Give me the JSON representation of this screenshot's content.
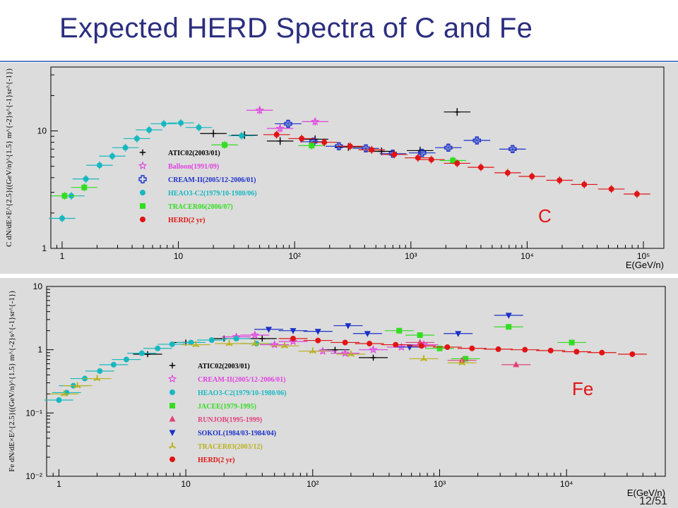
{
  "slide": {
    "title": "Expected HERD Spectra of C and Fe",
    "page_number": "12/51"
  },
  "chart_data": [
    {
      "type": "scatter",
      "title": "",
      "annotation": "C",
      "xlabel": "E(GeV/n)",
      "ylabel": "C dN/dE×E^{2.5}((GeV/n)^{1.5} m^{-2}s^{-1}sr^{-1})",
      "xscale": "log",
      "yscale": "log",
      "xlim": [
        0.8,
        150000
      ],
      "ylim": [
        1,
        35
      ],
      "x_ticks": [
        {
          "v": 1,
          "label": "1"
        },
        {
          "v": 10,
          "label": "10"
        },
        {
          "v": 100,
          "label": "10²"
        },
        {
          "v": 1000,
          "label": "10³"
        },
        {
          "v": 10000,
          "label": "10⁴"
        },
        {
          "v": 100000,
          "label": "10⁵"
        }
      ],
      "y_ticks": [
        {
          "v": 1,
          "label": "1"
        },
        {
          "v": 10,
          "label": "10"
        }
      ],
      "legend_position": "left",
      "series": [
        {
          "name": "ATIC02(2003/01)",
          "color": "#000000",
          "marker": "plus",
          "points": [
            {
              "x": 20,
              "y": 9.5
            },
            {
              "x": 37,
              "y": 9.2
            },
            {
              "x": 75,
              "y": 8.2
            },
            {
              "x": 150,
              "y": 8.5
            },
            {
              "x": 290,
              "y": 7.3
            },
            {
              "x": 560,
              "y": 6.7
            },
            {
              "x": 1200,
              "y": 6.8
            },
            {
              "x": 2500,
              "y": 14.5
            }
          ]
        },
        {
          "name": "Balloon(1991/09)",
          "color": "#e040e0",
          "marker": "star",
          "points": [
            {
              "x": 50,
              "y": 15
            },
            {
              "x": 75,
              "y": 10.5
            },
            {
              "x": 150,
              "y": 12
            }
          ]
        },
        {
          "name": "CREAM-II(2005/12-2006/01)",
          "color": "#1a30c8",
          "marker": "open-cross",
          "points": [
            {
              "x": 88,
              "y": 11.5
            },
            {
              "x": 145,
              "y": 8.1
            },
            {
              "x": 240,
              "y": 7.4
            },
            {
              "x": 410,
              "y": 7.1
            },
            {
              "x": 700,
              "y": 6.4
            },
            {
              "x": 1250,
              "y": 6.5
            },
            {
              "x": 2100,
              "y": 7.2
            },
            {
              "x": 3700,
              "y": 8.3
            },
            {
              "x": 7500,
              "y": 7
            }
          ]
        },
        {
          "name": "HEAO3-C2(1979/10-1980/06)",
          "color": "#17b8c0",
          "marker": "circle",
          "points": [
            {
              "x": 1,
              "y": 1.8
            },
            {
              "x": 1.2,
              "y": 2.8
            },
            {
              "x": 1.6,
              "y": 3.9
            },
            {
              "x": 2.1,
              "y": 5.1
            },
            {
              "x": 2.7,
              "y": 6.1
            },
            {
              "x": 3.5,
              "y": 7.2
            },
            {
              "x": 4.4,
              "y": 8.6
            },
            {
              "x": 5.6,
              "y": 10.2
            },
            {
              "x": 7.5,
              "y": 11.5
            },
            {
              "x": 10.5,
              "y": 11.7
            },
            {
              "x": 15,
              "y": 10.7
            },
            {
              "x": 35,
              "y": 9.1
            }
          ]
        },
        {
          "name": "TRACER06(2006/07)",
          "color": "#33dd22",
          "marker": "square",
          "points": [
            {
              "x": 1.05,
              "y": 2.8
            },
            {
              "x": 1.55,
              "y": 3.3
            },
            {
              "x": 25,
              "y": 7.6
            },
            {
              "x": 140,
              "y": 7.5
            },
            {
              "x": 2300,
              "y": 5.6
            }
          ]
        },
        {
          "name": "HERD(2 yr)",
          "color": "#e01414",
          "marker": "circle",
          "points": [
            {
              "x": 70,
              "y": 9.3
            },
            {
              "x": 115,
              "y": 8.6
            },
            {
              "x": 180,
              "y": 8.0
            },
            {
              "x": 300,
              "y": 7.4
            },
            {
              "x": 460,
              "y": 6.9
            },
            {
              "x": 720,
              "y": 6.3
            },
            {
              "x": 1150,
              "y": 5.9
            },
            {
              "x": 1500,
              "y": 5.7
            },
            {
              "x": 2500,
              "y": 5.3
            },
            {
              "x": 4000,
              "y": 4.9
            },
            {
              "x": 6800,
              "y": 4.4
            },
            {
              "x": 11000,
              "y": 4.1
            },
            {
              "x": 19000,
              "y": 3.8
            },
            {
              "x": 31000,
              "y": 3.5
            },
            {
              "x": 53000,
              "y": 3.2
            },
            {
              "x": 88000,
              "y": 2.9
            }
          ]
        }
      ]
    },
    {
      "type": "scatter",
      "title": "",
      "annotation": "Fe",
      "xlabel": "E(GeV/n)",
      "ylabel": "Fe dN/dE×E^{2.5}((GeV/n)^{1.5} m^{-2}s^{-1}sr^{-1})",
      "xscale": "log",
      "yscale": "log",
      "xlim": [
        0.8,
        60000
      ],
      "ylim": [
        0.01,
        10
      ],
      "x_ticks": [
        {
          "v": 1,
          "label": "1"
        },
        {
          "v": 10,
          "label": "10"
        },
        {
          "v": 100,
          "label": "10²"
        },
        {
          "v": 1000,
          "label": "10³"
        },
        {
          "v": 10000,
          "label": "10⁴"
        }
      ],
      "y_ticks": [
        {
          "v": 0.01,
          "label": "10⁻²"
        },
        {
          "v": 0.1,
          "label": "10⁻¹"
        },
        {
          "v": 1,
          "label": "1"
        },
        {
          "v": 10,
          "label": "10"
        }
      ],
      "legend_position": "left",
      "series": [
        {
          "name": "ATIC02(2003/01)",
          "color": "#000000",
          "marker": "plus",
          "points": [
            {
              "x": 5,
              "y": 0.85
            },
            {
              "x": 10,
              "y": 1.3
            },
            {
              "x": 20,
              "y": 1.5
            },
            {
              "x": 40,
              "y": 1.5
            },
            {
              "x": 150,
              "y": 1.0
            },
            {
              "x": 300,
              "y": 0.75
            }
          ]
        },
        {
          "name": "CREAM-II(2005/12-2006/01)",
          "color": "#e040e0",
          "marker": "star",
          "points": [
            {
              "x": 25,
              "y": 1.6
            },
            {
              "x": 35,
              "y": 1.7
            },
            {
              "x": 50,
              "y": 1.2
            },
            {
              "x": 70,
              "y": 1.35
            },
            {
              "x": 120,
              "y": 0.95
            },
            {
              "x": 180,
              "y": 0.88
            },
            {
              "x": 300,
              "y": 1.0
            },
            {
              "x": 500,
              "y": 1.1
            },
            {
              "x": 750,
              "y": 1.2
            }
          ]
        },
        {
          "name": "HEAO3-C2(1979/10-1980/06)",
          "color": "#17b8c0",
          "marker": "circle",
          "points": [
            {
              "x": 1,
              "y": 0.16
            },
            {
              "x": 1.15,
              "y": 0.21
            },
            {
              "x": 1.3,
              "y": 0.27
            },
            {
              "x": 1.6,
              "y": 0.35
            },
            {
              "x": 2.1,
              "y": 0.46
            },
            {
              "x": 2.7,
              "y": 0.58
            },
            {
              "x": 3.4,
              "y": 0.7
            },
            {
              "x": 4.5,
              "y": 0.88
            },
            {
              "x": 6,
              "y": 1.05
            },
            {
              "x": 7.8,
              "y": 1.22
            },
            {
              "x": 11,
              "y": 1.3
            },
            {
              "x": 16,
              "y": 1.42
            },
            {
              "x": 25,
              "y": 1.5
            },
            {
              "x": 36,
              "y": 1.25
            }
          ]
        },
        {
          "name": "JACEE(1979-1995)",
          "color": "#33dd22",
          "marker": "square",
          "points": [
            {
              "x": 480,
              "y": 2.0
            },
            {
              "x": 700,
              "y": 1.7
            },
            {
              "x": 1000,
              "y": 1.05
            },
            {
              "x": 1600,
              "y": 0.72
            },
            {
              "x": 3500,
              "y": 2.3
            },
            {
              "x": 11000,
              "y": 1.3
            }
          ]
        },
        {
          "name": "RUNJOB(1995-1999)",
          "color": "#e0407a",
          "marker": "triangle-up",
          "points": [
            {
              "x": 700,
              "y": 1.3
            },
            {
              "x": 1500,
              "y": 0.68
            },
            {
              "x": 4000,
              "y": 0.58
            }
          ]
        },
        {
          "name": "SOKOL(1984/03-1984/04)",
          "color": "#1a30c8",
          "marker": "triangle-down",
          "points": [
            {
              "x": 45,
              "y": 2.1
            },
            {
              "x": 70,
              "y": 2.0
            },
            {
              "x": 110,
              "y": 1.95
            },
            {
              "x": 190,
              "y": 2.4
            },
            {
              "x": 270,
              "y": 1.8
            },
            {
              "x": 580,
              "y": 1.1
            },
            {
              "x": 1400,
              "y": 1.8
            },
            {
              "x": 3500,
              "y": 3.5
            }
          ]
        },
        {
          "name": "TRACER03(2003/12)",
          "color": "#b9b21e",
          "marker": "tri-star",
          "points": [
            {
              "x": 1.1,
              "y": 0.2
            },
            {
              "x": 1.4,
              "y": 0.27
            },
            {
              "x": 2,
              "y": 0.35
            },
            {
              "x": 12,
              "y": 1.2
            },
            {
              "x": 22,
              "y": 1.25
            },
            {
              "x": 35,
              "y": 1.25
            },
            {
              "x": 60,
              "y": 1.15
            },
            {
              "x": 100,
              "y": 0.95
            },
            {
              "x": 200,
              "y": 0.85
            },
            {
              "x": 750,
              "y": 0.72
            },
            {
              "x": 1500,
              "y": 0.62
            }
          ]
        },
        {
          "name": "HERD(2 yr)",
          "color": "#e01414",
          "marker": "circle",
          "points": [
            {
              "x": 70,
              "y": 1.5
            },
            {
              "x": 110,
              "y": 1.4
            },
            {
              "x": 180,
              "y": 1.3
            },
            {
              "x": 280,
              "y": 1.25
            },
            {
              "x": 450,
              "y": 1.2
            },
            {
              "x": 720,
              "y": 1.15
            },
            {
              "x": 1150,
              "y": 1.1
            },
            {
              "x": 1800,
              "y": 1.05
            },
            {
              "x": 2900,
              "y": 1.02
            },
            {
              "x": 4700,
              "y": 1.0
            },
            {
              "x": 7500,
              "y": 0.97
            },
            {
              "x": 12000,
              "y": 0.93
            },
            {
              "x": 19000,
              "y": 0.9
            },
            {
              "x": 33000,
              "y": 0.85
            }
          ]
        }
      ]
    }
  ]
}
